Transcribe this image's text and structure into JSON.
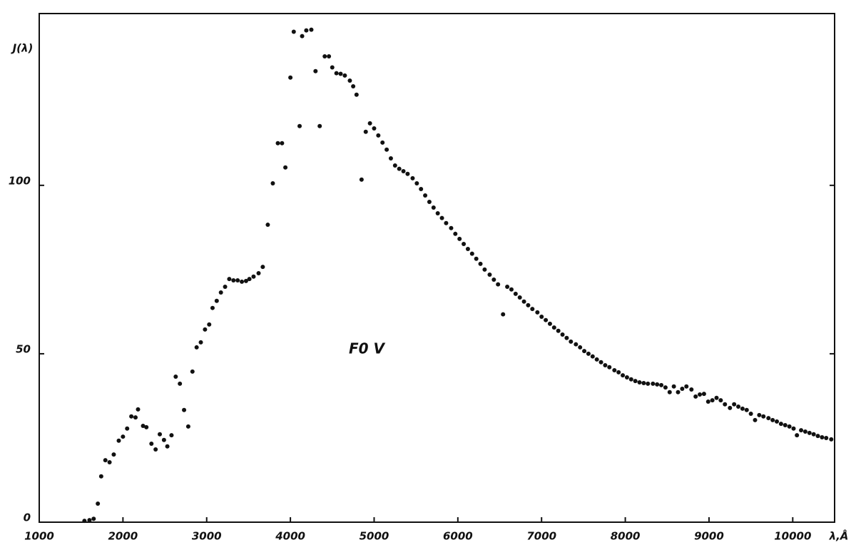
{
  "chart_data": {
    "type": "scatter",
    "annotation": "F0 V",
    "x_label": "λ,Å",
    "y_label": "J(λ)",
    "xlim": [
      1000,
      10500
    ],
    "ylim": [
      0,
      151
    ],
    "xticks": [
      1000,
      2000,
      3000,
      4000,
      5000,
      6000,
      7000,
      8000,
      9000,
      10000
    ],
    "yticks": [
      0,
      50,
      100
    ],
    "grid": false,
    "color": "#111111",
    "x": [
      1540,
      1600,
      1650,
      1700,
      1740,
      1790,
      1840,
      1890,
      1950,
      2000,
      2050,
      2100,
      2150,
      2180,
      2240,
      2280,
      2340,
      2390,
      2440,
      2490,
      2530,
      2580,
      2630,
      2680,
      2730,
      2780,
      2830,
      2880,
      2930,
      2980,
      3030,
      3070,
      3120,
      3170,
      3220,
      3270,
      3320,
      3370,
      3420,
      3470,
      3510,
      3560,
      3620,
      3670,
      3730,
      3790,
      3850,
      3900,
      3940,
      4000,
      4040,
      4110,
      4140,
      4190,
      4250,
      4300,
      4350,
      4410,
      4460,
      4500,
      4550,
      4600,
      4650,
      4710,
      4750,
      4790,
      4850,
      4900,
      4950,
      5000,
      5050,
      5100,
      5150,
      5200,
      5250,
      5300,
      5350,
      5400,
      5460,
      5510,
      5560,
      5610,
      5660,
      5710,
      5760,
      5810,
      5860,
      5920,
      5970,
      6020,
      6070,
      6120,
      6170,
      6220,
      6270,
      6320,
      6380,
      6430,
      6480,
      6540,
      6590,
      6640,
      6690,
      6740,
      6790,
      6840,
      6890,
      6950,
      7000,
      7050,
      7100,
      7150,
      7200,
      7250,
      7300,
      7350,
      7410,
      7460,
      7510,
      7560,
      7610,
      7660,
      7710,
      7760,
      7810,
      7870,
      7920,
      7970,
      8020,
      8070,
      8120,
      8170,
      8220,
      8270,
      8330,
      8380,
      8430,
      8480,
      8530,
      8580,
      8630,
      8680,
      8730,
      8790,
      8840,
      8890,
      8940,
      8990,
      9040,
      9090,
      9140,
      9190,
      9250,
      9300,
      9350,
      9400,
      9450,
      9500,
      9550,
      9600,
      9650,
      9710,
      9760,
      9810,
      9860,
      9910,
      9960,
      10010,
      10050,
      10100,
      10150,
      10200,
      10250,
      10300,
      10350,
      10400,
      10460
    ],
    "values": [
      0.4,
      0.6,
      1,
      5.5,
      13.6,
      18.4,
      17.8,
      20.1,
      24.2,
      25.4,
      27.8,
      31.4,
      31.1,
      33.5,
      28.6,
      28.2,
      23.3,
      21.6,
      26.1,
      24.4,
      22.5,
      25.8,
      43.2,
      41.1,
      33.3,
      28.4,
      44.7,
      51.9,
      53.4,
      57.2,
      58.7,
      63.6,
      65.7,
      68.2,
      69.9,
      72.2,
      71.8,
      71.8,
      71.4,
      71.6,
      72.2,
      72.9,
      73.9,
      75.8,
      88.3,
      100.6,
      112.5,
      112.5,
      105.3,
      132,
      145.6,
      117.6,
      144.3,
      146,
      146.2,
      133.9,
      117.6,
      138.3,
      138.3,
      135,
      133.3,
      133.1,
      132.6,
      131.1,
      129.4,
      126.9,
      101.7,
      115.9,
      118.4,
      116.9,
      114.8,
      112.7,
      110.6,
      108,
      105.9,
      104.9,
      104.2,
      103.4,
      102.1,
      100.6,
      98.9,
      97,
      95.1,
      93.4,
      91.7,
      90.3,
      88.8,
      87.3,
      85.6,
      84.1,
      82.6,
      81.1,
      79.7,
      78.2,
      76.7,
      75,
      73.5,
      72,
      70.6,
      61.7,
      69.9,
      69.1,
      67.8,
      66.7,
      65.5,
      64.4,
      63.3,
      62.3,
      61,
      60,
      58.9,
      57.8,
      56.8,
      55.7,
      54.7,
      53.6,
      52.8,
      51.9,
      50.8,
      50,
      49.2,
      48.3,
      47.5,
      46.6,
      46,
      45.1,
      44.5,
      43.6,
      43,
      42.4,
      41.9,
      41.5,
      41.3,
      41.1,
      41.1,
      40.9,
      40.7,
      40,
      38.6,
      40.3,
      38.6,
      39.6,
      40.3,
      39.4,
      37.3,
      37.9,
      38.1,
      35.8,
      36.2,
      36.9,
      36.2,
      35,
      33.9,
      35,
      34.3,
      33.7,
      33.3,
      32.2,
      30.3,
      31.8,
      31.4,
      30.9,
      30.3,
      29.9,
      29.2,
      28.8,
      28.4,
      27.8,
      25.8,
      27.3,
      26.9,
      26.5,
      26.1,
      25.6,
      25.2,
      25,
      24.6
    ]
  }
}
